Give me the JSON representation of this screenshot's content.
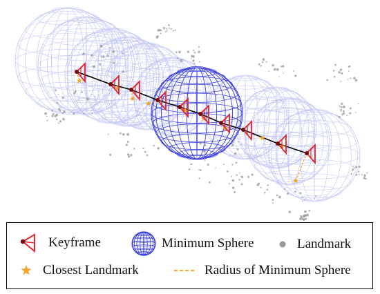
{
  "figure": {
    "colors": {
      "sphere_line": "#b9bff0",
      "min_sphere_line": "#3b3fe0",
      "keyframe": "#e3262b",
      "keyframe_center": "#7a0a0a",
      "trajectory": "#000000",
      "landmark": "#9a9a9a",
      "closest_landmark": "#f4a52a",
      "radius_line": "#f4a52a"
    },
    "keyframe_count": 10,
    "sphere_count": 10
  },
  "legend": {
    "keyframe_label": "Keyframe",
    "min_sphere_label": "Minimum Sphere",
    "landmark_label": "Landmark",
    "closest_landmark_label": "Closest Landmark",
    "radius_label": "Radius of Minimum Sphere",
    "keyframe_icon": "keyframe-icon",
    "min_sphere_icon": "sphere-icon",
    "landmark_icon": "landmark-dot-icon",
    "closest_icon": "star-icon",
    "radius_icon": "dashed-line-icon"
  }
}
